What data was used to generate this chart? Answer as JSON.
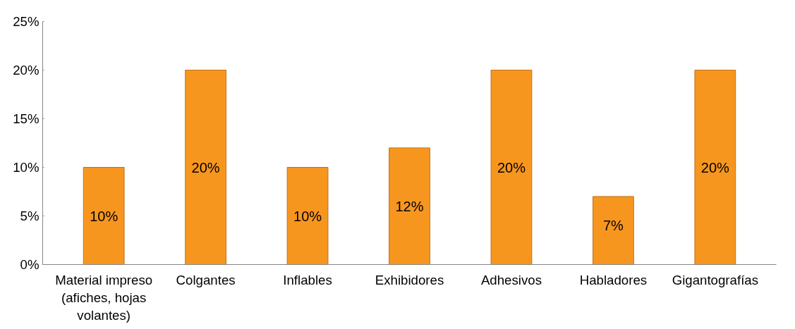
{
  "chart_data": {
    "type": "bar",
    "categories": [
      "Material impreso (afiches, hojas volantes)",
      "Colgantes",
      "Inflables",
      "Exhibidores",
      "Adhesivos",
      "Habladores",
      "Gigantografías"
    ],
    "values": [
      10,
      20,
      10,
      12,
      20,
      7,
      20
    ],
    "value_labels": [
      "10%",
      "20%",
      "10%",
      "12%",
      "20%",
      "7%",
      "20%"
    ],
    "color": "#f7961f",
    "ylim": [
      0,
      25
    ],
    "yticks": [
      {
        "value": 0,
        "label": "0%"
      },
      {
        "value": 5,
        "label": "5%"
      },
      {
        "value": 10,
        "label": "10%"
      },
      {
        "value": 15,
        "label": "15%"
      },
      {
        "value": 20,
        "label": "20%"
      },
      {
        "value": 25,
        "label": "25%"
      }
    ],
    "grid": false
  }
}
